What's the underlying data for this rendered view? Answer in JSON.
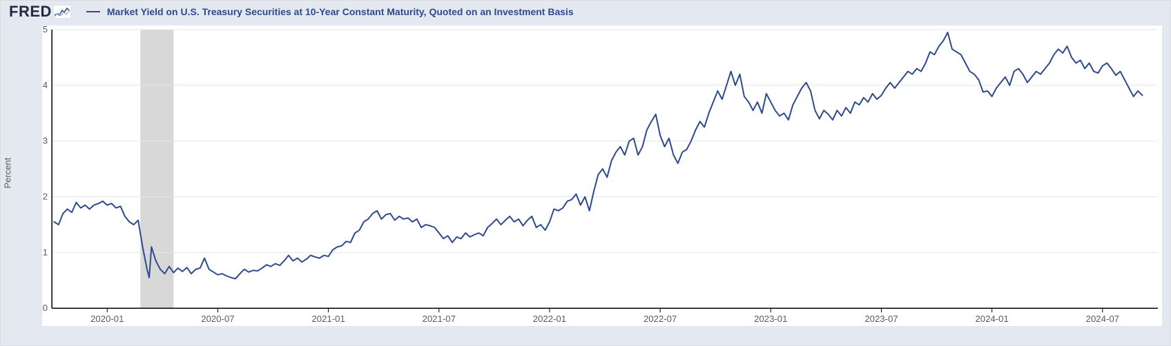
{
  "logo_text": "FRED",
  "series_title": "Market Yield on U.S. Treasury Securities at 10-Year Constant Maturity, Quoted on an Investment Basis",
  "chart": {
    "type": "line",
    "ylabel": "Percent",
    "ylim": [
      0,
      5
    ],
    "yticks": [
      0,
      1,
      2,
      3,
      4,
      5
    ],
    "xlim": [
      2019.75,
      2024.75
    ],
    "xticks": [
      {
        "t": 2020.0,
        "label": "2020-01"
      },
      {
        "t": 2020.5,
        "label": "2020-07"
      },
      {
        "t": 2021.0,
        "label": "2021-01"
      },
      {
        "t": 2021.5,
        "label": "2021-07"
      },
      {
        "t": 2022.0,
        "label": "2022-01"
      },
      {
        "t": 2022.5,
        "label": "2022-07"
      },
      {
        "t": 2023.0,
        "label": "2023-01"
      },
      {
        "t": 2023.5,
        "label": "2023-07"
      },
      {
        "t": 2024.0,
        "label": "2024-01"
      },
      {
        "t": 2024.5,
        "label": "2024-07"
      }
    ],
    "recession_band": {
      "start": 2020.15,
      "end": 2020.3
    },
    "line_color": "#2e4a8e",
    "line_width": 2,
    "background_color": "#ffffff",
    "grid_color": "#e6e6e6",
    "recession_color": "#d8d8d8",
    "header_bg": "#e4e9f1",
    "tick_font_color": "#5a5a5a",
    "tick_fontsize": 13,
    "title_fontsize": 14,
    "title_color": "#2e4a8e",
    "points": [
      {
        "t": 2019.76,
        "v": 1.55
      },
      {
        "t": 2019.78,
        "v": 1.5
      },
      {
        "t": 2019.8,
        "v": 1.7
      },
      {
        "t": 2019.82,
        "v": 1.78
      },
      {
        "t": 2019.84,
        "v": 1.72
      },
      {
        "t": 2019.86,
        "v": 1.9
      },
      {
        "t": 2019.88,
        "v": 1.8
      },
      {
        "t": 2019.9,
        "v": 1.85
      },
      {
        "t": 2019.92,
        "v": 1.78
      },
      {
        "t": 2019.94,
        "v": 1.85
      },
      {
        "t": 2019.96,
        "v": 1.88
      },
      {
        "t": 2019.98,
        "v": 1.92
      },
      {
        "t": 2020.0,
        "v": 1.85
      },
      {
        "t": 2020.02,
        "v": 1.88
      },
      {
        "t": 2020.04,
        "v": 1.8
      },
      {
        "t": 2020.06,
        "v": 1.83
      },
      {
        "t": 2020.08,
        "v": 1.65
      },
      {
        "t": 2020.1,
        "v": 1.55
      },
      {
        "t": 2020.12,
        "v": 1.5
      },
      {
        "t": 2020.14,
        "v": 1.58
      },
      {
        "t": 2020.16,
        "v": 1.1
      },
      {
        "t": 2020.18,
        "v": 0.7
      },
      {
        "t": 2020.19,
        "v": 0.55
      },
      {
        "t": 2020.2,
        "v": 1.1
      },
      {
        "t": 2020.22,
        "v": 0.85
      },
      {
        "t": 2020.24,
        "v": 0.7
      },
      {
        "t": 2020.26,
        "v": 0.62
      },
      {
        "t": 2020.28,
        "v": 0.75
      },
      {
        "t": 2020.3,
        "v": 0.64
      },
      {
        "t": 2020.32,
        "v": 0.72
      },
      {
        "t": 2020.34,
        "v": 0.66
      },
      {
        "t": 2020.36,
        "v": 0.73
      },
      {
        "t": 2020.38,
        "v": 0.62
      },
      {
        "t": 2020.4,
        "v": 0.7
      },
      {
        "t": 2020.42,
        "v": 0.72
      },
      {
        "t": 2020.44,
        "v": 0.9
      },
      {
        "t": 2020.46,
        "v": 0.7
      },
      {
        "t": 2020.48,
        "v": 0.65
      },
      {
        "t": 2020.5,
        "v": 0.6
      },
      {
        "t": 2020.52,
        "v": 0.62
      },
      {
        "t": 2020.54,
        "v": 0.58
      },
      {
        "t": 2020.56,
        "v": 0.55
      },
      {
        "t": 2020.58,
        "v": 0.53
      },
      {
        "t": 2020.6,
        "v": 0.62
      },
      {
        "t": 2020.62,
        "v": 0.7
      },
      {
        "t": 2020.64,
        "v": 0.65
      },
      {
        "t": 2020.66,
        "v": 0.68
      },
      {
        "t": 2020.68,
        "v": 0.67
      },
      {
        "t": 2020.7,
        "v": 0.72
      },
      {
        "t": 2020.72,
        "v": 0.78
      },
      {
        "t": 2020.74,
        "v": 0.75
      },
      {
        "t": 2020.76,
        "v": 0.8
      },
      {
        "t": 2020.78,
        "v": 0.77
      },
      {
        "t": 2020.8,
        "v": 0.85
      },
      {
        "t": 2020.82,
        "v": 0.95
      },
      {
        "t": 2020.84,
        "v": 0.85
      },
      {
        "t": 2020.86,
        "v": 0.9
      },
      {
        "t": 2020.88,
        "v": 0.83
      },
      {
        "t": 2020.9,
        "v": 0.88
      },
      {
        "t": 2020.92,
        "v": 0.95
      },
      {
        "t": 2020.94,
        "v": 0.92
      },
      {
        "t": 2020.96,
        "v": 0.9
      },
      {
        "t": 2020.98,
        "v": 0.95
      },
      {
        "t": 2021.0,
        "v": 0.93
      },
      {
        "t": 2021.02,
        "v": 1.05
      },
      {
        "t": 2021.04,
        "v": 1.1
      },
      {
        "t": 2021.06,
        "v": 1.12
      },
      {
        "t": 2021.08,
        "v": 1.2
      },
      {
        "t": 2021.1,
        "v": 1.18
      },
      {
        "t": 2021.12,
        "v": 1.35
      },
      {
        "t": 2021.14,
        "v": 1.4
      },
      {
        "t": 2021.16,
        "v": 1.55
      },
      {
        "t": 2021.18,
        "v": 1.6
      },
      {
        "t": 2021.2,
        "v": 1.7
      },
      {
        "t": 2021.22,
        "v": 1.75
      },
      {
        "t": 2021.24,
        "v": 1.6
      },
      {
        "t": 2021.26,
        "v": 1.68
      },
      {
        "t": 2021.28,
        "v": 1.7
      },
      {
        "t": 2021.3,
        "v": 1.58
      },
      {
        "t": 2021.32,
        "v": 1.65
      },
      {
        "t": 2021.34,
        "v": 1.6
      },
      {
        "t": 2021.36,
        "v": 1.62
      },
      {
        "t": 2021.38,
        "v": 1.55
      },
      {
        "t": 2021.4,
        "v": 1.6
      },
      {
        "t": 2021.42,
        "v": 1.45
      },
      {
        "t": 2021.44,
        "v": 1.5
      },
      {
        "t": 2021.46,
        "v": 1.48
      },
      {
        "t": 2021.48,
        "v": 1.45
      },
      {
        "t": 2021.5,
        "v": 1.35
      },
      {
        "t": 2021.52,
        "v": 1.25
      },
      {
        "t": 2021.54,
        "v": 1.3
      },
      {
        "t": 2021.56,
        "v": 1.18
      },
      {
        "t": 2021.58,
        "v": 1.28
      },
      {
        "t": 2021.6,
        "v": 1.25
      },
      {
        "t": 2021.62,
        "v": 1.35
      },
      {
        "t": 2021.64,
        "v": 1.28
      },
      {
        "t": 2021.66,
        "v": 1.32
      },
      {
        "t": 2021.68,
        "v": 1.35
      },
      {
        "t": 2021.7,
        "v": 1.3
      },
      {
        "t": 2021.72,
        "v": 1.45
      },
      {
        "t": 2021.74,
        "v": 1.52
      },
      {
        "t": 2021.76,
        "v": 1.6
      },
      {
        "t": 2021.78,
        "v": 1.5
      },
      {
        "t": 2021.8,
        "v": 1.58
      },
      {
        "t": 2021.82,
        "v": 1.65
      },
      {
        "t": 2021.84,
        "v": 1.55
      },
      {
        "t": 2021.86,
        "v": 1.6
      },
      {
        "t": 2021.88,
        "v": 1.48
      },
      {
        "t": 2021.9,
        "v": 1.58
      },
      {
        "t": 2021.92,
        "v": 1.65
      },
      {
        "t": 2021.94,
        "v": 1.45
      },
      {
        "t": 2021.96,
        "v": 1.5
      },
      {
        "t": 2021.98,
        "v": 1.4
      },
      {
        "t": 2022.0,
        "v": 1.55
      },
      {
        "t": 2022.02,
        "v": 1.78
      },
      {
        "t": 2022.04,
        "v": 1.75
      },
      {
        "t": 2022.06,
        "v": 1.8
      },
      {
        "t": 2022.08,
        "v": 1.92
      },
      {
        "t": 2022.1,
        "v": 1.95
      },
      {
        "t": 2022.12,
        "v": 2.05
      },
      {
        "t": 2022.14,
        "v": 1.85
      },
      {
        "t": 2022.16,
        "v": 2.0
      },
      {
        "t": 2022.18,
        "v": 1.75
      },
      {
        "t": 2022.2,
        "v": 2.1
      },
      {
        "t": 2022.22,
        "v": 2.4
      },
      {
        "t": 2022.24,
        "v": 2.5
      },
      {
        "t": 2022.26,
        "v": 2.35
      },
      {
        "t": 2022.28,
        "v": 2.65
      },
      {
        "t": 2022.3,
        "v": 2.8
      },
      {
        "t": 2022.32,
        "v": 2.9
      },
      {
        "t": 2022.34,
        "v": 2.75
      },
      {
        "t": 2022.36,
        "v": 3.0
      },
      {
        "t": 2022.38,
        "v": 3.05
      },
      {
        "t": 2022.4,
        "v": 2.75
      },
      {
        "t": 2022.42,
        "v": 2.9
      },
      {
        "t": 2022.44,
        "v": 3.2
      },
      {
        "t": 2022.46,
        "v": 3.35
      },
      {
        "t": 2022.48,
        "v": 3.48
      },
      {
        "t": 2022.5,
        "v": 3.1
      },
      {
        "t": 2022.52,
        "v": 2.9
      },
      {
        "t": 2022.54,
        "v": 3.05
      },
      {
        "t": 2022.56,
        "v": 2.75
      },
      {
        "t": 2022.58,
        "v": 2.6
      },
      {
        "t": 2022.6,
        "v": 2.8
      },
      {
        "t": 2022.62,
        "v": 2.85
      },
      {
        "t": 2022.64,
        "v": 3.0
      },
      {
        "t": 2022.66,
        "v": 3.2
      },
      {
        "t": 2022.68,
        "v": 3.35
      },
      {
        "t": 2022.7,
        "v": 3.25
      },
      {
        "t": 2022.72,
        "v": 3.5
      },
      {
        "t": 2022.74,
        "v": 3.7
      },
      {
        "t": 2022.76,
        "v": 3.9
      },
      {
        "t": 2022.78,
        "v": 3.75
      },
      {
        "t": 2022.8,
        "v": 4.0
      },
      {
        "t": 2022.82,
        "v": 4.25
      },
      {
        "t": 2022.84,
        "v": 4.0
      },
      {
        "t": 2022.86,
        "v": 4.2
      },
      {
        "t": 2022.88,
        "v": 3.8
      },
      {
        "t": 2022.9,
        "v": 3.7
      },
      {
        "t": 2022.92,
        "v": 3.55
      },
      {
        "t": 2022.94,
        "v": 3.7
      },
      {
        "t": 2022.96,
        "v": 3.5
      },
      {
        "t": 2022.98,
        "v": 3.85
      },
      {
        "t": 2023.0,
        "v": 3.7
      },
      {
        "t": 2023.02,
        "v": 3.55
      },
      {
        "t": 2023.04,
        "v": 3.45
      },
      {
        "t": 2023.06,
        "v": 3.5
      },
      {
        "t": 2023.08,
        "v": 3.38
      },
      {
        "t": 2023.1,
        "v": 3.65
      },
      {
        "t": 2023.12,
        "v": 3.8
      },
      {
        "t": 2023.14,
        "v": 3.95
      },
      {
        "t": 2023.16,
        "v": 4.05
      },
      {
        "t": 2023.18,
        "v": 3.9
      },
      {
        "t": 2023.2,
        "v": 3.55
      },
      {
        "t": 2023.22,
        "v": 3.4
      },
      {
        "t": 2023.24,
        "v": 3.55
      },
      {
        "t": 2023.26,
        "v": 3.48
      },
      {
        "t": 2023.28,
        "v": 3.38
      },
      {
        "t": 2023.3,
        "v": 3.55
      },
      {
        "t": 2023.32,
        "v": 3.45
      },
      {
        "t": 2023.34,
        "v": 3.6
      },
      {
        "t": 2023.36,
        "v": 3.5
      },
      {
        "t": 2023.38,
        "v": 3.7
      },
      {
        "t": 2023.4,
        "v": 3.65
      },
      {
        "t": 2023.42,
        "v": 3.78
      },
      {
        "t": 2023.44,
        "v": 3.7
      },
      {
        "t": 2023.46,
        "v": 3.85
      },
      {
        "t": 2023.48,
        "v": 3.75
      },
      {
        "t": 2023.5,
        "v": 3.82
      },
      {
        "t": 2023.52,
        "v": 3.95
      },
      {
        "t": 2023.54,
        "v": 4.05
      },
      {
        "t": 2023.56,
        "v": 3.95
      },
      {
        "t": 2023.58,
        "v": 4.05
      },
      {
        "t": 2023.6,
        "v": 4.15
      },
      {
        "t": 2023.62,
        "v": 4.25
      },
      {
        "t": 2023.64,
        "v": 4.2
      },
      {
        "t": 2023.66,
        "v": 4.3
      },
      {
        "t": 2023.68,
        "v": 4.25
      },
      {
        "t": 2023.7,
        "v": 4.4
      },
      {
        "t": 2023.72,
        "v": 4.6
      },
      {
        "t": 2023.74,
        "v": 4.55
      },
      {
        "t": 2023.76,
        "v": 4.7
      },
      {
        "t": 2023.78,
        "v": 4.8
      },
      {
        "t": 2023.8,
        "v": 4.95
      },
      {
        "t": 2023.82,
        "v": 4.65
      },
      {
        "t": 2023.84,
        "v": 4.6
      },
      {
        "t": 2023.86,
        "v": 4.55
      },
      {
        "t": 2023.88,
        "v": 4.4
      },
      {
        "t": 2023.9,
        "v": 4.25
      },
      {
        "t": 2023.92,
        "v": 4.2
      },
      {
        "t": 2023.94,
        "v": 4.1
      },
      {
        "t": 2023.96,
        "v": 3.88
      },
      {
        "t": 2023.98,
        "v": 3.9
      },
      {
        "t": 2024.0,
        "v": 3.8
      },
      {
        "t": 2024.02,
        "v": 3.95
      },
      {
        "t": 2024.04,
        "v": 4.05
      },
      {
        "t": 2024.06,
        "v": 4.15
      },
      {
        "t": 2024.08,
        "v": 4.0
      },
      {
        "t": 2024.1,
        "v": 4.25
      },
      {
        "t": 2024.12,
        "v": 4.3
      },
      {
        "t": 2024.14,
        "v": 4.2
      },
      {
        "t": 2024.16,
        "v": 4.05
      },
      {
        "t": 2024.18,
        "v": 4.15
      },
      {
        "t": 2024.2,
        "v": 4.25
      },
      {
        "t": 2024.22,
        "v": 4.2
      },
      {
        "t": 2024.24,
        "v": 4.3
      },
      {
        "t": 2024.26,
        "v": 4.4
      },
      {
        "t": 2024.28,
        "v": 4.55
      },
      {
        "t": 2024.3,
        "v": 4.65
      },
      {
        "t": 2024.32,
        "v": 4.58
      },
      {
        "t": 2024.34,
        "v": 4.7
      },
      {
        "t": 2024.36,
        "v": 4.5
      },
      {
        "t": 2024.38,
        "v": 4.4
      },
      {
        "t": 2024.4,
        "v": 4.45
      },
      {
        "t": 2024.42,
        "v": 4.3
      },
      {
        "t": 2024.44,
        "v": 4.4
      },
      {
        "t": 2024.46,
        "v": 4.25
      },
      {
        "t": 2024.48,
        "v": 4.22
      },
      {
        "t": 2024.5,
        "v": 4.35
      },
      {
        "t": 2024.52,
        "v": 4.4
      },
      {
        "t": 2024.54,
        "v": 4.3
      },
      {
        "t": 2024.56,
        "v": 4.18
      },
      {
        "t": 2024.58,
        "v": 4.25
      },
      {
        "t": 2024.6,
        "v": 4.1
      },
      {
        "t": 2024.62,
        "v": 3.95
      },
      {
        "t": 2024.64,
        "v": 3.8
      },
      {
        "t": 2024.66,
        "v": 3.9
      },
      {
        "t": 2024.68,
        "v": 3.82
      }
    ]
  }
}
